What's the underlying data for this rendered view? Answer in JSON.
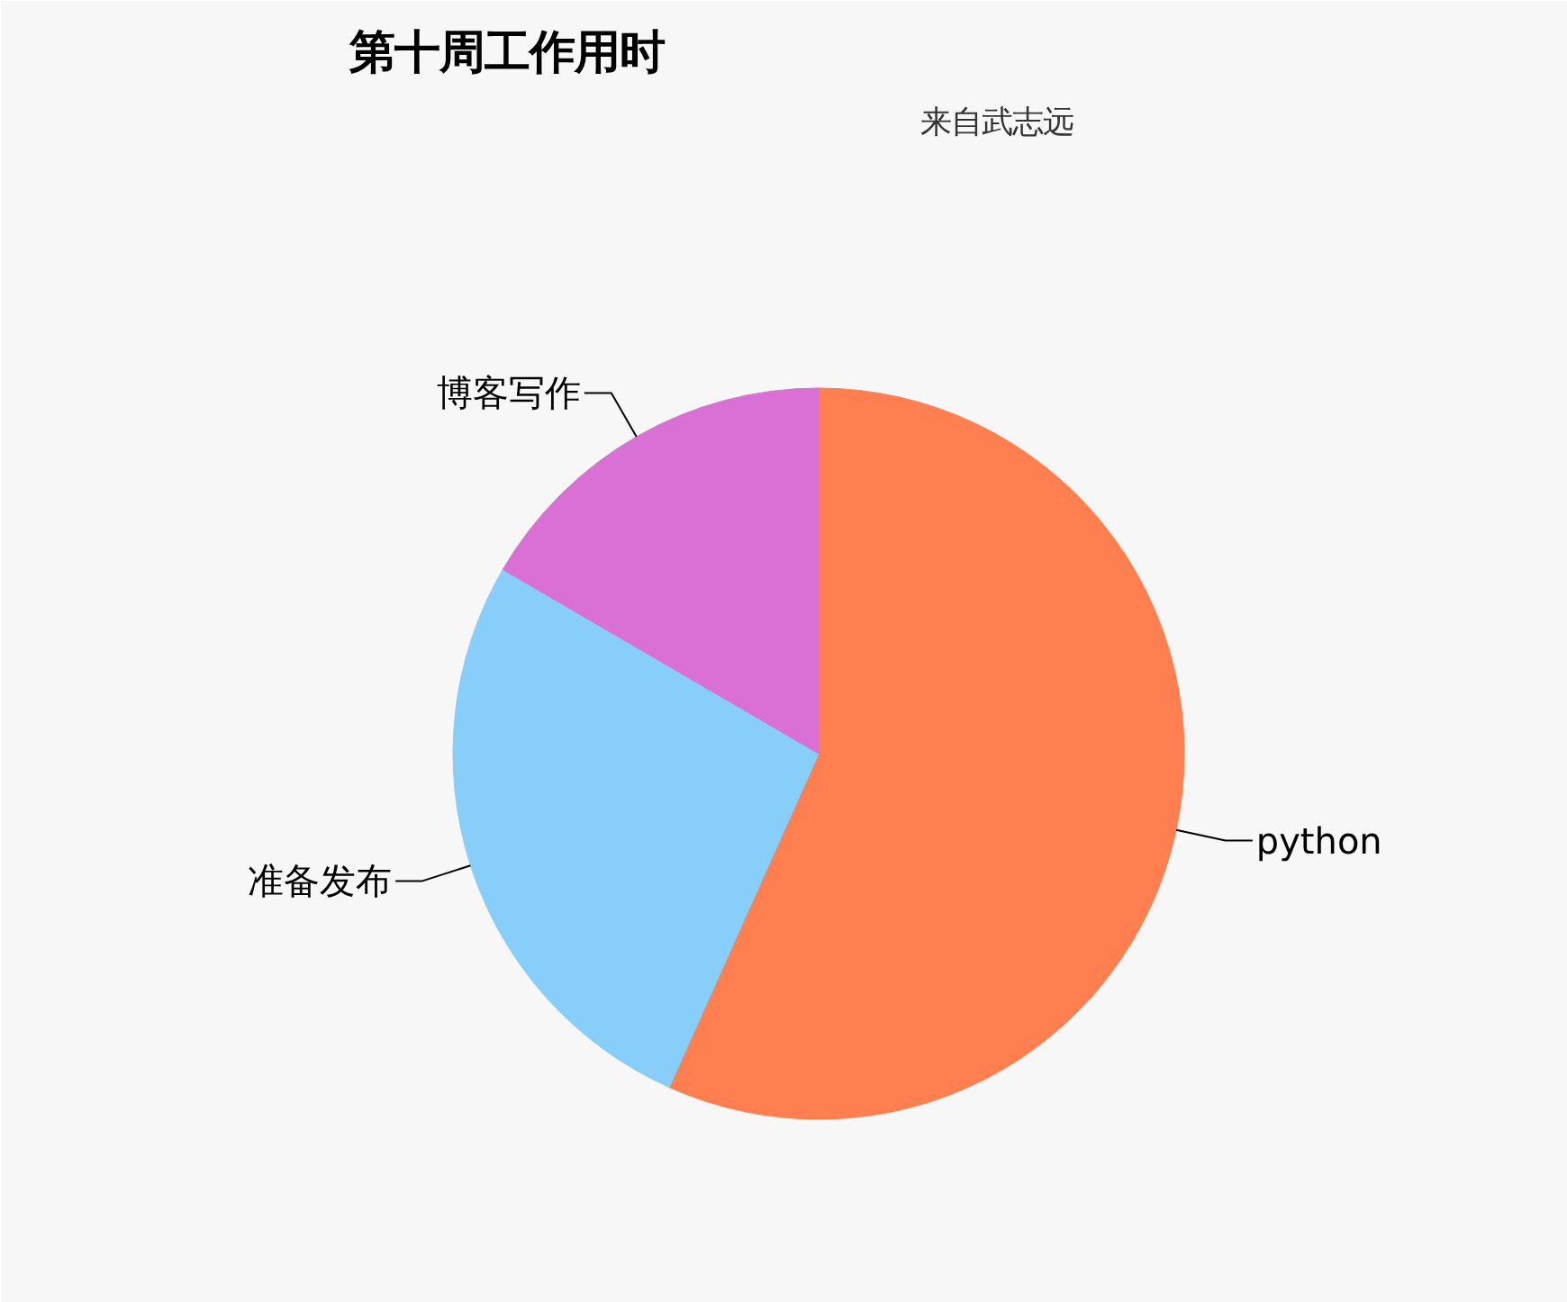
{
  "chart_data": {
    "type": "pie",
    "title": "第十周工作用时",
    "subtitle": "来自武志远",
    "categories": [
      "python",
      "准备发布",
      "博客写作"
    ],
    "values": [
      56.7,
      26.7,
      16.6
    ],
    "colors": [
      "#ff7f50",
      "#87cefa",
      "#da70d6"
    ],
    "legend": false
  }
}
